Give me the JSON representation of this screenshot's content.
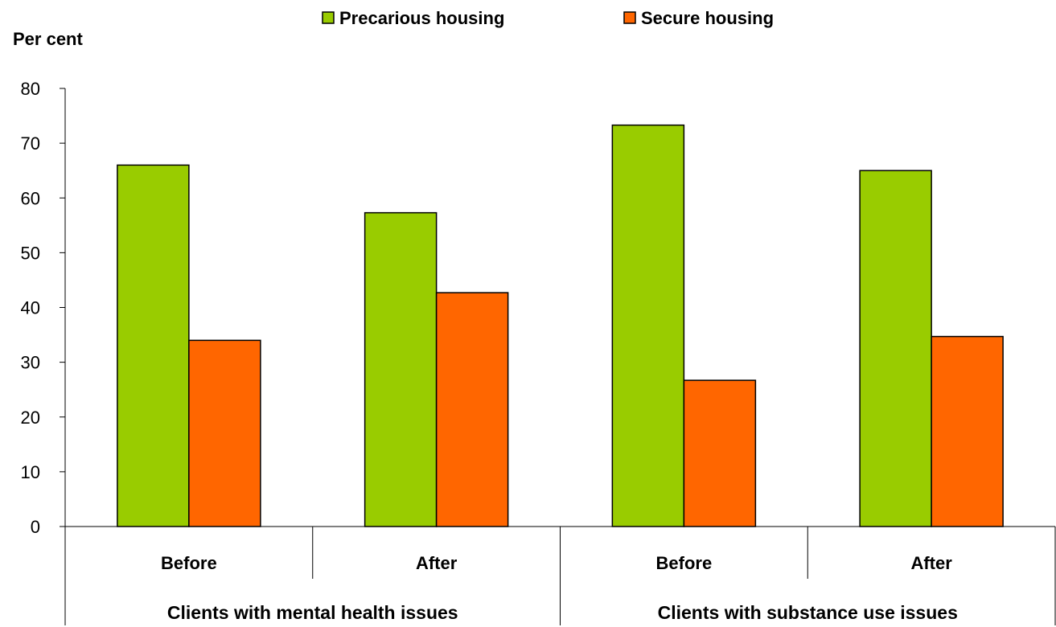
{
  "chart_data": {
    "type": "bar",
    "ylabel": "Per cent",
    "ylim": [
      0,
      80
    ],
    "yticks": [
      0,
      10,
      20,
      30,
      40,
      50,
      60,
      70,
      80
    ],
    "categories": [
      "Before",
      "After",
      "Before",
      "After"
    ],
    "groups": [
      {
        "label": "Clients with mental health issues",
        "span": [
          0,
          1
        ]
      },
      {
        "label": "Clients with substance use issues",
        "span": [
          2,
          3
        ]
      }
    ],
    "series": [
      {
        "name": "Precarious housing",
        "color": "#99cc00",
        "values": [
          66,
          57.3,
          73.3,
          65
        ]
      },
      {
        "name": "Secure housing",
        "color": "#ff6600",
        "values": [
          34,
          42.7,
          26.7,
          34.7
        ]
      }
    ],
    "legend_position": "top-center",
    "grid": false
  }
}
